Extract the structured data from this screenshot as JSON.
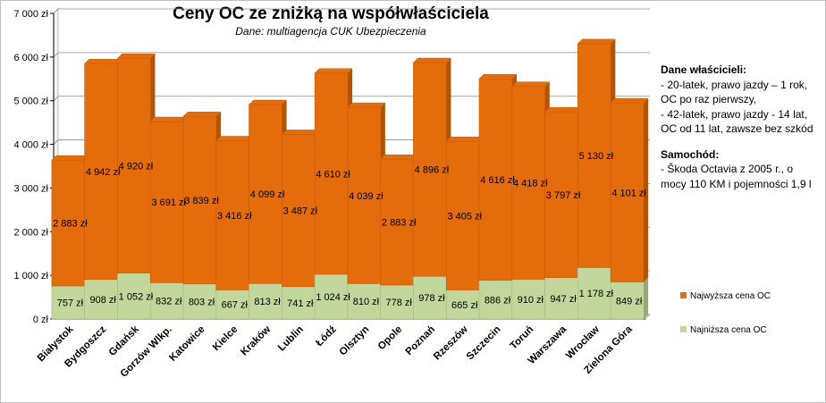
{
  "chart_data": {
    "type": "bar",
    "stacked": true,
    "title": "Ceny OC ze zniżką na współwłaściciela",
    "subtitle": "Dane: multiagencja CUK Ubezpieczenia",
    "categories": [
      "Białystok",
      "Bydgoszcz",
      "Gdańsk",
      "Gorzów Wlkp.",
      "Katowice",
      "Kielce",
      "Kraków",
      "Lublin",
      "Łódź",
      "Olsztyn",
      "Opole",
      "Poznań",
      "Rzeszów",
      "Szczecin",
      "Toruń",
      "Warszawa",
      "Wrocław",
      "Zielona Góra"
    ],
    "series": [
      {
        "name": "Najniższa cena OC",
        "color": "#c3d69b",
        "values": [
          757,
          908,
          1052,
          832,
          803,
          667,
          813,
          741,
          1024,
          810,
          778,
          978,
          665,
          886,
          910,
          947,
          1178,
          849
        ],
        "labels": [
          "757 zł",
          "908 zł",
          "1 052 zł",
          "832 zł",
          "803 zł",
          "667 zł",
          "813 zł",
          "741 zł",
          "1 024 zł",
          "810 zł",
          "778 zł",
          "978 zł",
          "665 zł",
          "886 zł",
          "910 zł",
          "947 zł",
          "1 178 zł",
          "849 zł"
        ]
      },
      {
        "name": "Najwyższa cena OC",
        "color": "#e46c0a",
        "values": [
          2883,
          4942,
          4920,
          3691,
          3839,
          3416,
          4099,
          3487,
          4610,
          4039,
          2883,
          4896,
          3405,
          4616,
          4418,
          3797,
          5130,
          4101
        ],
        "labels": [
          "2 883 zł",
          "4 942 zł",
          "4 920 zł",
          "3 691 zł",
          "3 839 zł",
          "3 416 zł",
          "4 099 zł",
          "3 487 zł",
          "4 610 zł",
          "4 039 zł",
          "2 883 zł",
          "4 896 zł",
          "3 405 zł",
          "4 616 zł",
          "4 418 zł",
          "3 797 zł",
          "5 130 zł",
          "4 101 zł"
        ]
      }
    ],
    "ylim": [
      0,
      7000
    ],
    "yticks": [
      0,
      1000,
      2000,
      3000,
      4000,
      5000,
      6000,
      7000
    ],
    "ytick_labels": [
      "0 zł",
      "1 000 zł",
      "2 000 zł",
      "3 000 zł",
      "4 000 zł",
      "5 000 zł",
      "6 000 zł",
      "7 000 zł"
    ],
    "grid": true,
    "legend_position": "right",
    "legend_order": [
      "Najwyższa cena OC",
      "Najniższa cena OC"
    ]
  },
  "info": {
    "owners_title": "Dane właścicieli:",
    "owners_lines": [
      "- 20-latek, prawo jazdy – 1 rok, OC po raz pierwszy,",
      "- 42-latek, prawo jazdy - 14 lat, OC od 11 lat, zawsze bez szkód"
    ],
    "car_title": "Samochód:",
    "car_lines": [
      "- Škoda Octavia z 2005 r., o mocy 110 KM i pojemności 1,9 l"
    ]
  }
}
